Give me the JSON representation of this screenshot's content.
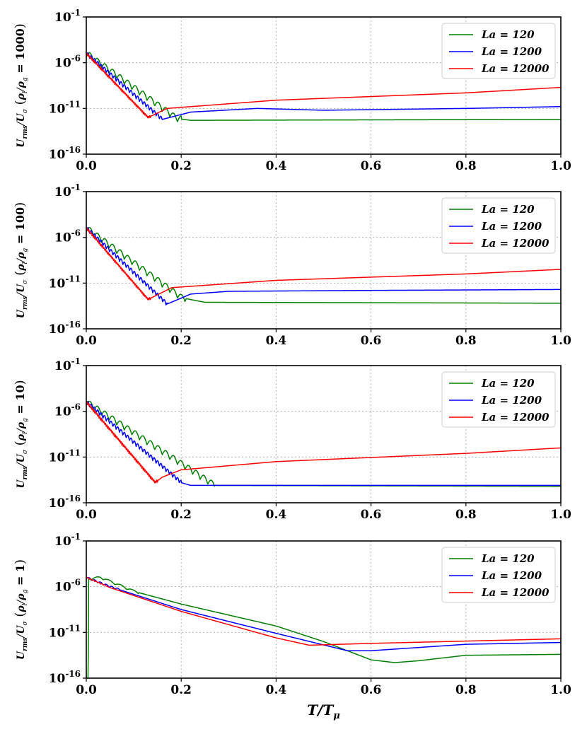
{
  "chart_data": [
    {
      "type": "line",
      "ylabel": "U_rms / U_σ (ρ_l / ρ_g = 1000)",
      "ylabel_parts": {
        "num": "U",
        "num_sub": "rms",
        "den": "U",
        "den_sub": "σ",
        "ratio_num": "ρ",
        "ratio_num_sub": "l",
        "ratio_den": "ρ",
        "ratio_den_sub": "g",
        "value": "1000"
      },
      "yscale": "log",
      "ylim_exp": [
        -16,
        -1
      ],
      "yticks_exp": [
        -16,
        -11,
        -6,
        -1
      ],
      "xlim": [
        0.0,
        1.0
      ],
      "xticks": [
        "0.0",
        "0.2",
        "0.4",
        "0.6",
        "0.8",
        "1.0"
      ],
      "legend": {
        "placement": "top-right",
        "labels": [
          "La = 120",
          "La = 1200",
          "La = 12000"
        ]
      },
      "series": [
        {
          "name": "La = 120",
          "color": "#008000",
          "log10_y_envelope": [
            [
              0.0,
              -5.0
            ],
            [
              0.19,
              -12.1
            ],
            [
              0.22,
              -12.3
            ],
            [
              1.0,
              -12.2
            ]
          ],
          "osc_amp": 0.7,
          "osc_period": 0.016,
          "osc_end": 0.2
        },
        {
          "name": "La = 1200",
          "color": "#0000ff",
          "log10_y_envelope": [
            [
              0.0,
              -5.0
            ],
            [
              0.16,
              -12.2
            ],
            [
              0.22,
              -11.4
            ],
            [
              0.36,
              -11.0
            ],
            [
              0.5,
              -11.2
            ],
            [
              0.8,
              -11.0
            ],
            [
              1.0,
              -10.8
            ]
          ],
          "osc_amp": 0.45,
          "osc_period": 0.007,
          "osc_end": 0.16
        },
        {
          "name": "La = 12000",
          "color": "#ff0000",
          "log10_y_envelope": [
            [
              0.0,
              -5.0
            ],
            [
              0.13,
              -12.0
            ],
            [
              0.17,
              -11.0
            ],
            [
              0.4,
              -10.1
            ],
            [
              0.8,
              -9.3
            ],
            [
              1.0,
              -8.7
            ]
          ],
          "osc_amp": 0.25,
          "osc_period": 0.003,
          "osc_end": 0.135
        }
      ]
    },
    {
      "type": "line",
      "ylabel": "U_rms / U_σ (ρ_l / ρ_g = 100)",
      "ylabel_parts": {
        "num": "U",
        "num_sub": "rms",
        "den": "U",
        "den_sub": "σ",
        "ratio_num": "ρ",
        "ratio_num_sub": "l",
        "ratio_den": "ρ",
        "ratio_den_sub": "g",
        "value": "100"
      },
      "yscale": "log",
      "ylim_exp": [
        -16,
        -1
      ],
      "yticks_exp": [
        -16,
        -11,
        -6,
        -1
      ],
      "xlim": [
        0.0,
        1.0
      ],
      "xticks": [
        "0.0",
        "0.2",
        "0.4",
        "0.6",
        "0.8",
        "1.0"
      ],
      "legend": {
        "placement": "top-right",
        "labels": [
          "La = 120",
          "La = 1200",
          "La = 12000"
        ]
      },
      "series": [
        {
          "name": "La = 120",
          "color": "#008000",
          "log10_y_envelope": [
            [
              0.0,
              -5.0
            ],
            [
              0.2,
              -12.6
            ],
            [
              0.25,
              -13.1
            ],
            [
              1.0,
              -13.2
            ]
          ],
          "osc_amp": 0.7,
          "osc_period": 0.016,
          "osc_end": 0.21
        },
        {
          "name": "La = 1200",
          "color": "#0000ff",
          "log10_y_envelope": [
            [
              0.0,
              -5.0
            ],
            [
              0.17,
              -13.3
            ],
            [
              0.22,
              -12.2
            ],
            [
              0.3,
              -11.9
            ],
            [
              0.6,
              -11.8
            ],
            [
              1.0,
              -11.7
            ]
          ],
          "osc_amp": 0.45,
          "osc_period": 0.007,
          "osc_end": 0.17
        },
        {
          "name": "La = 12000",
          "color": "#ff0000",
          "log10_y_envelope": [
            [
              0.0,
              -5.0
            ],
            [
              0.13,
              -12.8
            ],
            [
              0.18,
              -11.5
            ],
            [
              0.4,
              -10.7
            ],
            [
              0.8,
              -10.0
            ],
            [
              1.0,
              -9.5
            ]
          ],
          "osc_amp": 0.25,
          "osc_period": 0.003,
          "osc_end": 0.135
        }
      ]
    },
    {
      "type": "line",
      "ylabel": "U_rms / U_σ (ρ_l / ρ_g = 10)",
      "ylabel_parts": {
        "num": "U",
        "num_sub": "rms",
        "den": "U",
        "den_sub": "σ",
        "ratio_num": "ρ",
        "ratio_num_sub": "l",
        "ratio_den": "ρ",
        "ratio_den_sub": "g",
        "value": "10"
      },
      "yscale": "log",
      "ylim_exp": [
        -16,
        -1
      ],
      "yticks_exp": [
        -16,
        -11,
        -6,
        -1
      ],
      "xlim": [
        0.0,
        1.0
      ],
      "xticks": [
        "0.0",
        "0.2",
        "0.4",
        "0.6",
        "0.8",
        "1.0"
      ],
      "legend": {
        "placement": "top-right",
        "labels": [
          "La = 120",
          "La = 1200",
          "La = 12000"
        ]
      },
      "series": [
        {
          "name": "La = 120",
          "color": "#008000",
          "log10_y_envelope": [
            [
              0.0,
              -5.0
            ],
            [
              0.27,
              -14.1
            ],
            [
              1.0,
              -14.2
            ]
          ],
          "osc_amp": 0.7,
          "osc_period": 0.016,
          "osc_end": 0.27
        },
        {
          "name": "La = 1200",
          "color": "#0000ff",
          "log10_y_envelope": [
            [
              0.0,
              -5.0
            ],
            [
              0.2,
              -13.8
            ],
            [
              0.22,
              -14.1
            ],
            [
              1.0,
              -14.1
            ]
          ],
          "osc_amp": 0.45,
          "osc_period": 0.007,
          "osc_end": 0.2
        },
        {
          "name": "La = 12000",
          "color": "#ff0000",
          "log10_y_envelope": [
            [
              0.0,
              -5.0
            ],
            [
              0.145,
              -13.8
            ],
            [
              0.16,
              -13.2
            ],
            [
              0.2,
              -12.4
            ],
            [
              0.4,
              -11.5
            ],
            [
              0.8,
              -10.6
            ],
            [
              1.0,
              -10.0
            ]
          ],
          "osc_amp": 0.3,
          "osc_period": 0.003,
          "osc_end": 0.15
        }
      ]
    },
    {
      "type": "line",
      "ylabel": "U_rms / U_σ (ρ_l / ρ_g = 1)",
      "ylabel_parts": {
        "num": "U",
        "num_sub": "rms",
        "den": "U",
        "den_sub": "σ",
        "ratio_num": "ρ",
        "ratio_num_sub": "l",
        "ratio_den": "ρ",
        "ratio_den_sub": "g",
        "value": "1"
      },
      "yscale": "log",
      "ylim_exp": [
        -16,
        -1
      ],
      "yticks_exp": [
        -16,
        -11,
        -6,
        -1
      ],
      "xlim": [
        0.0,
        1.0
      ],
      "xticks": [
        "0.0",
        "0.2",
        "0.4",
        "0.6",
        "0.8",
        "1.0"
      ],
      "xlabel": "T/T_μ",
      "xlabel_parts": {
        "main": "T/T",
        "sub": "μ"
      },
      "legend": {
        "placement": "top-right",
        "labels": [
          "La = 120",
          "La = 1200",
          "La = 12000"
        ]
      },
      "series": [
        {
          "name": "La = 120",
          "color": "#008000",
          "log10_y_envelope": [
            [
              0.0,
              -16.0
            ],
            [
              0.004,
              -16.0
            ],
            [
              0.005,
              -5.2
            ],
            [
              0.03,
              -5.0
            ],
            [
              0.1,
              -6.5
            ],
            [
              0.2,
              -7.9
            ],
            [
              0.4,
              -10.3
            ],
            [
              0.5,
              -12.0
            ],
            [
              0.6,
              -14.0
            ],
            [
              0.65,
              -14.3
            ],
            [
              0.7,
              -14.1
            ],
            [
              0.8,
              -13.5
            ],
            [
              1.0,
              -13.4
            ]
          ],
          "osc_amp": 0.25,
          "osc_period": 0.025,
          "osc_start": 0.01,
          "osc_end": 0.11
        },
        {
          "name": "La = 1200",
          "color": "#0000ff",
          "log10_y_envelope": [
            [
              0.0,
              -5.0
            ],
            [
              0.05,
              -6.0
            ],
            [
              0.2,
              -8.5
            ],
            [
              0.4,
              -11.1
            ],
            [
              0.55,
              -13.0
            ],
            [
              0.6,
              -13.0
            ],
            [
              0.8,
              -12.3
            ],
            [
              1.0,
              -12.1
            ]
          ],
          "osc_amp": 0.2,
          "osc_period": 0.012,
          "osc_start": 0.0,
          "osc_end": 0.07
        },
        {
          "name": "La = 12000",
          "color": "#ff0000",
          "log10_y_envelope": [
            [
              0.0,
              -5.0
            ],
            [
              0.05,
              -6.1
            ],
            [
              0.2,
              -8.7
            ],
            [
              0.4,
              -11.6
            ],
            [
              0.47,
              -12.4
            ],
            [
              0.6,
              -12.2
            ],
            [
              1.0,
              -11.7
            ]
          ],
          "osc_amp": 0.12,
          "osc_period": 0.006,
          "osc_start": 0.0,
          "osc_end": 0.04
        }
      ]
    }
  ]
}
